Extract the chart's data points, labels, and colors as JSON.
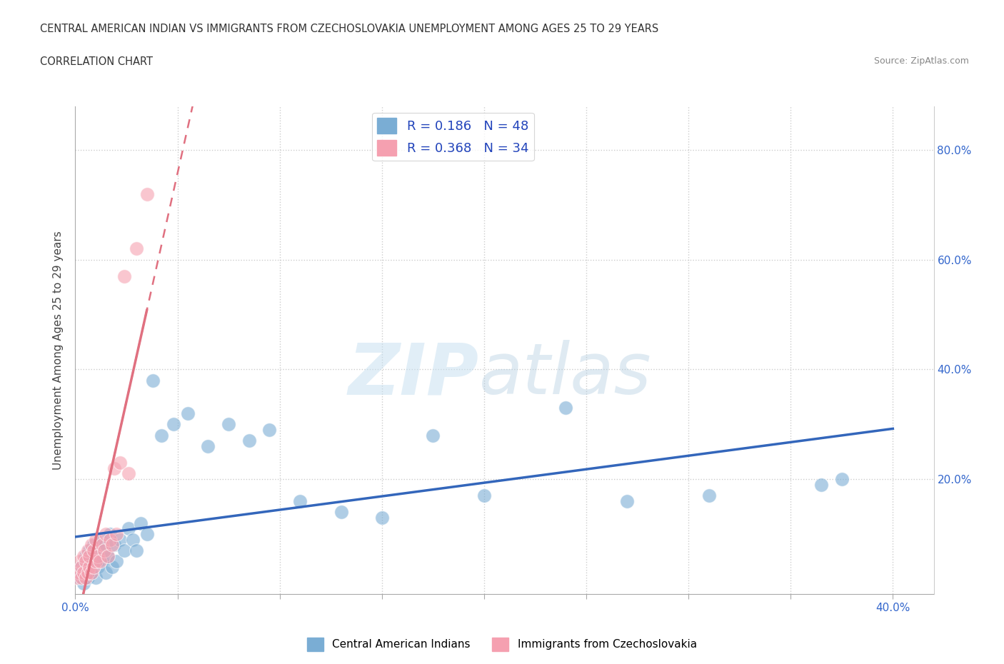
{
  "title_line1": "CENTRAL AMERICAN INDIAN VS IMMIGRANTS FROM CZECHOSLOVAKIA UNEMPLOYMENT AMONG AGES 25 TO 29 YEARS",
  "title_line2": "CORRELATION CHART",
  "source_text": "Source: ZipAtlas.com",
  "ylabel": "Unemployment Among Ages 25 to 29 years",
  "xlim": [
    0.0,
    0.42
  ],
  "ylim": [
    -0.01,
    0.88
  ],
  "xticks": [
    0.0,
    0.05,
    0.1,
    0.15,
    0.2,
    0.25,
    0.3,
    0.35,
    0.4
  ],
  "xtick_labels": [
    "0.0%",
    "",
    "",
    "",
    "",
    "",
    "",
    "",
    "40.0%"
  ],
  "ytick_labels_right": [
    "20.0%",
    "40.0%",
    "60.0%",
    "80.0%"
  ],
  "ytick_positions_right": [
    0.2,
    0.4,
    0.6,
    0.8
  ],
  "blue_color": "#7aadd4",
  "pink_color": "#f5a0b0",
  "blue_trend_color": "#3366bb",
  "pink_trend_color": "#e07080",
  "blue_R": 0.186,
  "blue_N": 48,
  "pink_R": 0.368,
  "pink_N": 34,
  "legend_label_blue": "Central American Indians",
  "legend_label_pink": "Immigrants from Czechoslovakia",
  "watermark_zip": "ZIP",
  "watermark_atlas": "atlas",
  "blue_scatter_x": [
    0.002,
    0.003,
    0.004,
    0.005,
    0.005,
    0.006,
    0.007,
    0.007,
    0.008,
    0.009,
    0.01,
    0.01,
    0.011,
    0.012,
    0.013,
    0.014,
    0.015,
    0.015,
    0.016,
    0.017,
    0.018,
    0.019,
    0.02,
    0.022,
    0.024,
    0.026,
    0.028,
    0.03,
    0.032,
    0.035,
    0.038,
    0.042,
    0.048,
    0.055,
    0.065,
    0.075,
    0.085,
    0.095,
    0.11,
    0.13,
    0.15,
    0.175,
    0.2,
    0.24,
    0.27,
    0.31,
    0.365,
    0.375
  ],
  "blue_scatter_y": [
    0.02,
    0.04,
    0.01,
    0.06,
    0.03,
    0.02,
    0.05,
    0.07,
    0.03,
    0.08,
    0.02,
    0.06,
    0.04,
    0.09,
    0.05,
    0.07,
    0.03,
    0.08,
    0.06,
    0.1,
    0.04,
    0.08,
    0.05,
    0.09,
    0.07,
    0.11,
    0.09,
    0.07,
    0.12,
    0.1,
    0.38,
    0.28,
    0.3,
    0.32,
    0.26,
    0.3,
    0.27,
    0.29,
    0.16,
    0.14,
    0.13,
    0.28,
    0.17,
    0.33,
    0.16,
    0.17,
    0.19,
    0.2
  ],
  "pink_scatter_x": [
    0.001,
    0.002,
    0.002,
    0.003,
    0.003,
    0.004,
    0.004,
    0.005,
    0.005,
    0.006,
    0.006,
    0.007,
    0.007,
    0.008,
    0.008,
    0.009,
    0.009,
    0.01,
    0.01,
    0.011,
    0.012,
    0.013,
    0.014,
    0.015,
    0.016,
    0.017,
    0.018,
    0.019,
    0.02,
    0.022,
    0.024,
    0.026,
    0.03,
    0.035
  ],
  "pink_scatter_y": [
    0.02,
    0.03,
    0.05,
    0.02,
    0.04,
    0.03,
    0.06,
    0.02,
    0.05,
    0.03,
    0.07,
    0.04,
    0.06,
    0.03,
    0.08,
    0.04,
    0.07,
    0.05,
    0.09,
    0.06,
    0.05,
    0.08,
    0.07,
    0.1,
    0.06,
    0.09,
    0.08,
    0.22,
    0.1,
    0.23,
    0.57,
    0.21,
    0.62,
    0.72
  ]
}
